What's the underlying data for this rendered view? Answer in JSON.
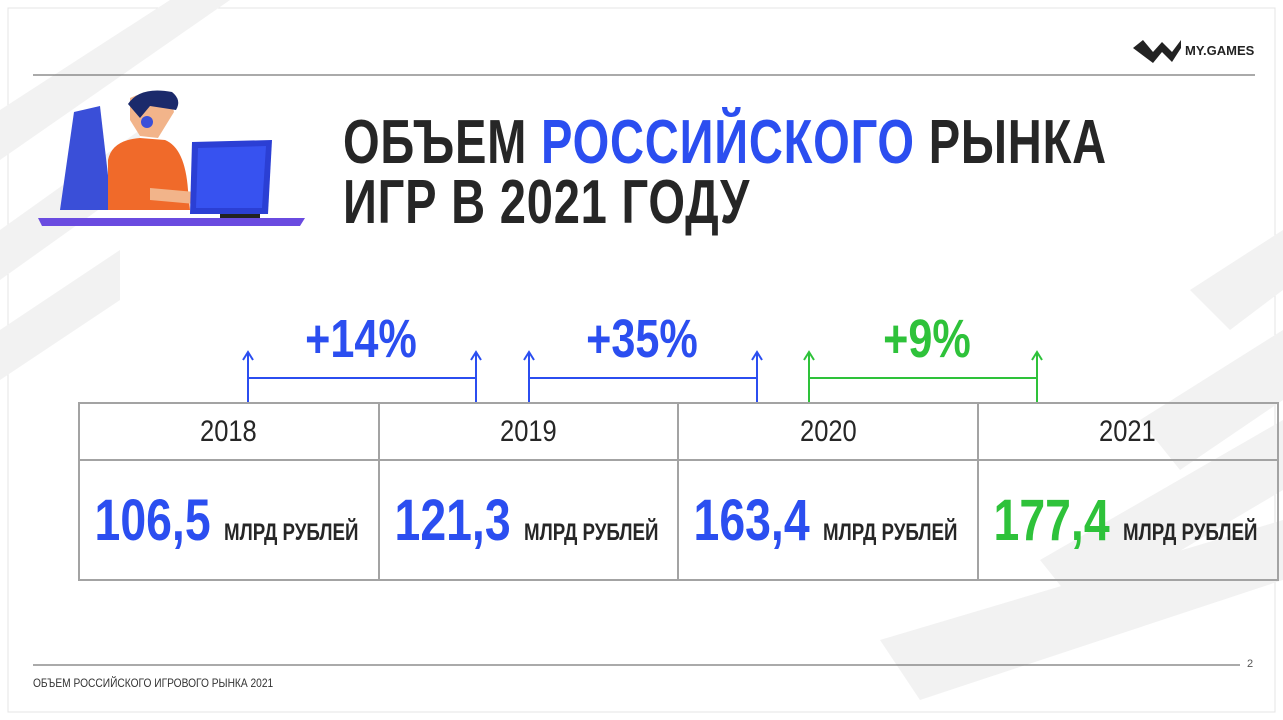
{
  "logo": "MY.GAMES",
  "title": {
    "line1": [
      "ОБЪЕМ",
      "РОССИЙСКОГО",
      "РЫНКА"
    ],
    "line2": "ИГР В 2021 ГОДУ"
  },
  "growth": [
    "+14%",
    "+35%",
    "+9%"
  ],
  "table": {
    "years": [
      "2018",
      "2019",
      "2020",
      "2021"
    ],
    "values": [
      "106,5",
      "121,3",
      "163,4",
      "177,4"
    ],
    "units": [
      "МЛРД РУБЛЕЙ",
      "МЛРД РУБЛЕЙ",
      "МЛРД РУБЛЕЙ",
      "МЛРД РУБЛЕЙ"
    ]
  },
  "footer": {
    "text": "ОБЪЕМ РОССИЙСКОГО ИГРОВОГО РЫНКА 2021",
    "page": "2"
  }
}
